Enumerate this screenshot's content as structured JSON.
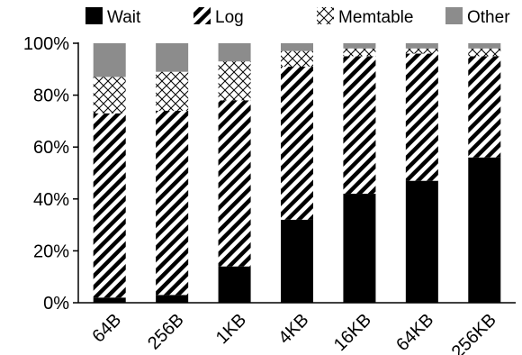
{
  "chart_data": {
    "type": "bar",
    "stacked": true,
    "percent": true,
    "categories": [
      "64B",
      "256B",
      "1KB",
      "4KB",
      "16KB",
      "64KB",
      "256KB"
    ],
    "series": [
      {
        "name": "Wait",
        "values": [
          2,
          3,
          14,
          32,
          42,
          47,
          56
        ],
        "fill": "solid",
        "color": "#000000"
      },
      {
        "name": "Log",
        "values": [
          71,
          71,
          64,
          59,
          53,
          49,
          39
        ],
        "fill": "diagonal-hatch",
        "color": "#000000"
      },
      {
        "name": "Memtable",
        "values": [
          14,
          15,
          15,
          6,
          3,
          2,
          3
        ],
        "fill": "cross-hatch",
        "color": "#000000"
      },
      {
        "name": "Other",
        "values": [
          13,
          11,
          7,
          3,
          2,
          2,
          2
        ],
        "fill": "solid",
        "color": "#8c8c8c"
      }
    ],
    "ylim": [
      0,
      100
    ],
    "yticks": [
      "0%",
      "20%",
      "40%",
      "60%",
      "80%",
      "100%"
    ],
    "xlabel": "",
    "ylabel": "",
    "grid": false,
    "legend_position": "top"
  }
}
